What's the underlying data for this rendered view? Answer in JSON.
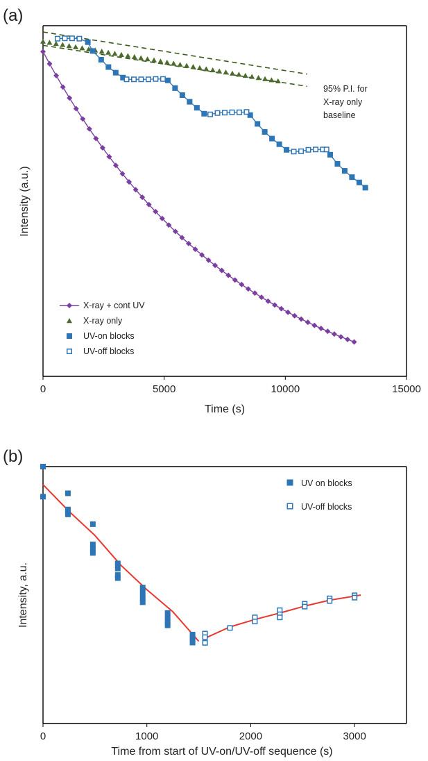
{
  "figure": {
    "panel_a_label": "(a)",
    "panel_b_label": "(b)"
  },
  "chart_data": [
    {
      "type": "scatter",
      "panel": "(a)",
      "xlabel": "Time (s)",
      "ylabel": "Intensity (a.u.)",
      "xlim": [
        0,
        15000
      ],
      "xticks": [
        "0",
        "5000",
        "10000",
        "15000"
      ],
      "ylim": [
        0,
        1
      ],
      "yticks": [],
      "grid": false,
      "legend_placement": "bottom-left",
      "annotation": [
        "95% P.I. for",
        "X-ray only",
        "baseline"
      ],
      "colors": {
        "xray_cont_uv": "#7b3fa1",
        "xray_only": "#4d6b2e",
        "uv_on": "#2e75b6",
        "uv_off": "#2e75b6",
        "pi_band": "#3d5a1e"
      },
      "series": [
        {
          "name": "X-ray + cont UV",
          "marker": "diamond",
          "connected": true,
          "x_start": 0,
          "x_end": 12840,
          "count": 48,
          "y_start": 0.926,
          "y_end": 0.098,
          "decay_tau_s": 8000
        },
        {
          "name": "X-ray only",
          "marker": "triangle",
          "connected": false,
          "x_start": 0,
          "x_end": 9700,
          "count": 37,
          "y_start": 0.955,
          "y_end": 0.842
        },
        {
          "name": "UV-on blocks",
          "marker": "square-filled",
          "connected": true,
          "points": [
            [
              1850,
              0.953
            ],
            [
              2050,
              0.928
            ],
            [
              2400,
              0.903
            ],
            [
              2700,
              0.882
            ],
            [
              3000,
              0.866
            ],
            [
              3300,
              0.852
            ],
            [
              5150,
              0.844
            ],
            [
              5450,
              0.822
            ],
            [
              5750,
              0.802
            ],
            [
              6050,
              0.783
            ],
            [
              6350,
              0.766
            ],
            [
              6650,
              0.749
            ],
            [
              8550,
              0.745
            ],
            [
              8850,
              0.72
            ],
            [
              9150,
              0.697
            ],
            [
              9450,
              0.678
            ],
            [
              9750,
              0.662
            ],
            [
              10050,
              0.646
            ],
            [
              11850,
              0.632
            ],
            [
              12150,
              0.606
            ],
            [
              12450,
              0.586
            ],
            [
              12750,
              0.568
            ],
            [
              13050,
              0.553
            ],
            [
              13300,
              0.538
            ]
          ]
        },
        {
          "name": "UV-off blocks",
          "marker": "square-open",
          "connected": true,
          "points": [
            [
              600,
              0.963
            ],
            [
              900,
              0.964
            ],
            [
              1200,
              0.964
            ],
            [
              1500,
              0.963
            ],
            [
              3450,
              0.847
            ],
            [
              3750,
              0.847
            ],
            [
              4050,
              0.847
            ],
            [
              4350,
              0.847
            ],
            [
              4650,
              0.848
            ],
            [
              4950,
              0.848
            ],
            [
              6900,
              0.747
            ],
            [
              7200,
              0.751
            ],
            [
              7500,
              0.752
            ],
            [
              7800,
              0.753
            ],
            [
              8100,
              0.753
            ],
            [
              8400,
              0.754
            ],
            [
              10350,
              0.641
            ],
            [
              10650,
              0.642
            ],
            [
              10950,
              0.646
            ],
            [
              11250,
              0.647
            ],
            [
              11550,
              0.647
            ],
            [
              11700,
              0.647
            ]
          ]
        },
        {
          "name": "95% P.I. upper",
          "line": "dashed",
          "points": [
            [
              0,
              0.982
            ],
            [
              10900,
              0.862
            ]
          ]
        },
        {
          "name": "95% P.I. lower",
          "line": "dashed",
          "points": [
            [
              0,
              0.944
            ],
            [
              10900,
              0.827
            ]
          ]
        }
      ],
      "legend": [
        "X-ray + cont UV",
        "X-ray only",
        "UV-on blocks",
        "UV-off blocks"
      ]
    },
    {
      "type": "scatter",
      "panel": "(b)",
      "xlabel": "Time from start of UV-on/UV-off sequence (s)",
      "ylabel": "Intensity, a.u.",
      "xlim": [
        0,
        3500
      ],
      "xticks": [
        "0",
        "1000",
        "2000",
        "3000"
      ],
      "ylim": [
        0,
        1
      ],
      "yticks": [],
      "grid": false,
      "legend_placement": "top-right",
      "colors": {
        "uv_on": "#2e75b6",
        "uv_off": "#2e75b6",
        "fit": "#e8382f"
      },
      "series": [
        {
          "name": "UV on blocks",
          "marker": "square-filled",
          "points": [
            [
              0,
              1.0
            ],
            [
              0,
              0.883
            ],
            [
              240,
              0.896
            ],
            [
              240,
              0.833
            ],
            [
              240,
              0.824
            ],
            [
              240,
              0.814
            ],
            [
              480,
              0.776
            ],
            [
              480,
              0.697
            ],
            [
              480,
              0.68
            ],
            [
              480,
              0.664
            ],
            [
              720,
              0.623
            ],
            [
              720,
              0.603
            ],
            [
              720,
              0.578
            ],
            [
              720,
              0.566
            ],
            [
              960,
              0.529
            ],
            [
              960,
              0.509
            ],
            [
              960,
              0.488
            ],
            [
              960,
              0.472
            ],
            [
              1200,
              0.43
            ],
            [
              1200,
              0.41
            ],
            [
              1200,
              0.394
            ],
            [
              1200,
              0.382
            ],
            [
              1440,
              0.346
            ],
            [
              1440,
              0.336
            ],
            [
              1440,
              0.326
            ],
            [
              1440,
              0.315
            ]
          ]
        },
        {
          "name": "UV-off blocks",
          "marker": "square-open",
          "points": [
            [
              1560,
              0.35
            ],
            [
              1560,
              0.336
            ],
            [
              1560,
              0.314
            ],
            [
              1800,
              0.372
            ],
            [
              2040,
              0.413
            ],
            [
              2040,
              0.397
            ],
            [
              2280,
              0.441
            ],
            [
              2280,
              0.425
            ],
            [
              2280,
              0.413
            ],
            [
              2520,
              0.466
            ],
            [
              2520,
              0.455
            ],
            [
              2760,
              0.487
            ],
            [
              2760,
              0.477
            ],
            [
              3000,
              0.499
            ],
            [
              3000,
              0.49
            ]
          ]
        },
        {
          "name": "fit",
          "line": "solid",
          "segments": [
            [
              [
                0,
                0.93
              ],
              [
                250,
                0.826
              ],
              [
                500,
                0.732
              ],
              [
                750,
                0.616
              ],
              [
                1000,
                0.521
              ],
              [
                1250,
                0.435
              ],
              [
                1500,
                0.32
              ]
            ],
            [
              [
                1560,
                0.332
              ],
              [
                1800,
                0.376
              ],
              [
                2040,
                0.405
              ],
              [
                2280,
                0.43
              ],
              [
                2520,
                0.457
              ],
              [
                2760,
                0.48
              ],
              [
                3060,
                0.5
              ]
            ]
          ]
        }
      ],
      "legend": [
        "UV on blocks",
        "UV-off blocks"
      ]
    }
  ]
}
